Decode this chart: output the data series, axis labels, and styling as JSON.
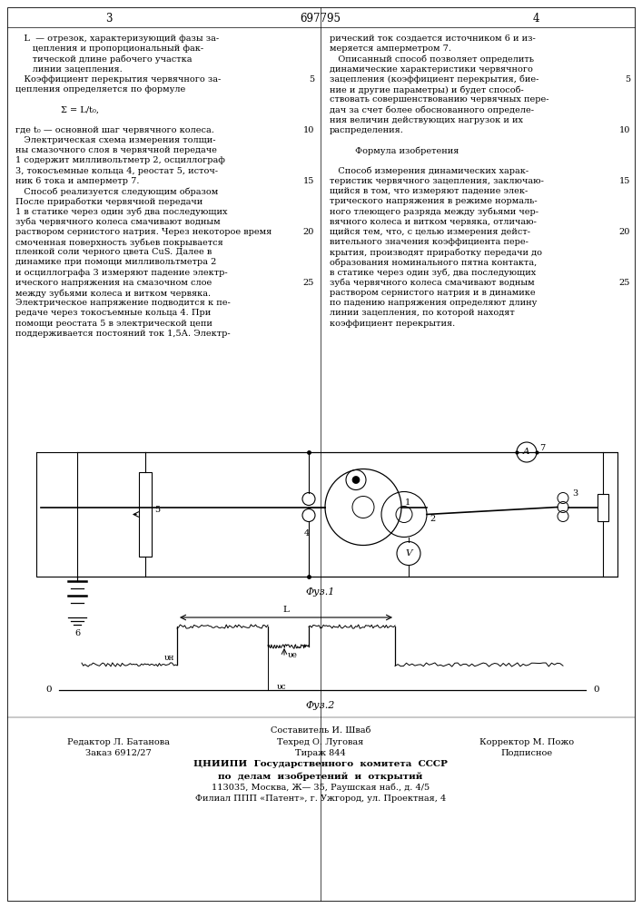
{
  "title": "697795",
  "page_left": "3",
  "page_right": "4",
  "bg_color": "#ffffff",
  "text_color": "#000000",
  "fig1_label": "Φуз.1",
  "fig2_label": "Φуз.2",
  "left_col_lines": [
    "   L  — отрезок, характеризующий фазы за-",
    "      цепления и пропорциональный фак-",
    "      тической длине рабочего участка",
    "      линии зацепления.",
    "   Коэффициент перекрытия червячного за-",
    "цепления определяется по формуле",
    "",
    "                Σ = L/t₀,",
    "",
    "где t₀ — основной шаг червячного колеса.",
    "   Электрическая схема измерения толщи-",
    "ны смазочного слоя в червячной передаче",
    "1 содержит милливольтметр 2, осциллограф",
    "3, токосъемные кольца 4, реостат 5, источ-",
    "ник 6 тока и амперметр 7.",
    "   Способ реализуется следующим образом",
    "После приработки червячной передачи",
    "1 в статике через один зуб два последующих",
    "зуба червячного колеса смачивают водным",
    "раствором сернистого натрия. Через некоторое время",
    "смоченная поверхность зубьев покрывается",
    "пленкой соли черного цвета CuS. Далее в",
    "динамике при помощи милливольтметра 2",
    "и осциллографа 3 измеряют падение электр-",
    "ического напряжения на смазочном слое",
    "между зубьями колеса и витком червяка.",
    "Электрическое напряжение подводится к пе-",
    "редаче через токосъемные кольца 4. При",
    "помощи реостата 5 в электрической цепи",
    "поддерживается постояний ток 1,5А. Электр-"
  ],
  "right_col_lines": [
    "рический ток создается источником 6 и из-",
    "меряется амперметром 7.",
    "   Описанный способ позволяет определить",
    "динамические характеристики червячного",
    "зацепления (коэффициент перекрытия, бие-",
    "ние и другие параметры) и будет способ-",
    "ствовать совершенствованию червячных пере-",
    "дач за счет более обоснованного определе-",
    "ния величин действующих нагрузок и их",
    "распределения.",
    "",
    "         Формула изобретения",
    "",
    "   Способ измерения динамических харак-",
    "теристик червячного зацепления, заключаю-",
    "щийся в том, что измеряют падение элек-",
    "трического напряжения в режиме нормаль-",
    "ного тлеющего разряда между зубьями чер-",
    "вячного колеса и витком червяка, отличаю-",
    "щийся тем, что, с целью измерения дейст-",
    "вительного значения коэффициента пере-",
    "крытия, производят приработку передачи до",
    "образования номинального пятна контакта,",
    "в статике через один зуб, два последующих",
    "зуба червячного колеса смачивают водным",
    "раствором сернистого натрия и в динамике",
    "по падению напряжения определяют длину",
    "линии зацепления, по которой находят",
    "коэффициент перекрытия."
  ],
  "footer_lines": [
    "Составитель И. Шваб",
    "Редактор Л. Батанова",
    "Техред О. Луговая",
    "Корректор М. Пожо",
    "Заказ 6912/27",
    "Тираж 844",
    "Подписное",
    "ЦНИИПИ  Государственного  комитета  СССР",
    "по  делам  изобретений  и  открытий",
    "113035, Москва, Ж— 35, Раушская наб., д. 4/5",
    "Филиал ППП «Патент», г. Ужгород, ул. Проектная, 4"
  ],
  "linenums": [
    5,
    10,
    15,
    20,
    25
  ],
  "linenum_rows": [
    4,
    9,
    14,
    19,
    24
  ]
}
